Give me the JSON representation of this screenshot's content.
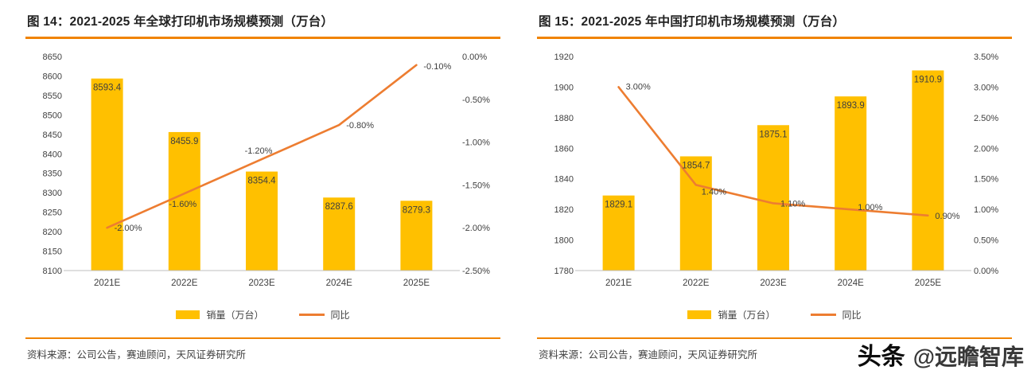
{
  "colors": {
    "bar": "#FFC000",
    "line": "#ED7D31",
    "accent_rule": "#F08300",
    "axis_text": "#404040"
  },
  "watermark": {
    "brand": "头条",
    "handle": "@远瞻智库"
  },
  "chart_data": [
    {
      "type": "bar+line",
      "title": "图 14：2021-2025 年全球打印机市场规模预测（万台）",
      "categories": [
        "2021E",
        "2022E",
        "2023E",
        "2024E",
        "2025E"
      ],
      "series": [
        {
          "name": "销量（万台）",
          "type": "bar",
          "axis": "left",
          "values": [
            8593.4,
            8455.9,
            8354.4,
            8287.6,
            8279.3
          ],
          "labels": [
            "8593.4",
            "8455.9",
            "8354.4",
            "8287.6",
            "8279.3"
          ]
        },
        {
          "name": "同比",
          "type": "line",
          "axis": "right",
          "values": [
            -2.0,
            -1.6,
            -1.2,
            -0.8,
            -0.1
          ],
          "labels": [
            "-2.00%",
            "-1.60%",
            "-1.20%",
            "-0.80%",
            "-0.10%"
          ]
        }
      ],
      "left_axis": {
        "min": 8100,
        "max": 8650,
        "tick_labels": [
          "8650",
          "8600",
          "8550",
          "8500",
          "8450",
          "8400",
          "8350",
          "8300",
          "8250",
          "8200",
          "8150",
          "8100"
        ]
      },
      "right_axis": {
        "min": -2.5,
        "max": 0,
        "tick_labels": [
          "0.00%",
          "-0.50%",
          "-1.00%",
          "-1.50%",
          "-2.00%",
          "-2.50%"
        ]
      },
      "legend_position": "bottom",
      "grid": "off",
      "source": "资料来源：公司公告，赛迪顾问，天风证券研究所"
    },
    {
      "type": "bar+line",
      "title": "图 15：2021-2025 年中国打印机市场规模预测（万台）",
      "categories": [
        "2021E",
        "2022E",
        "2023E",
        "2024E",
        "2025E"
      ],
      "series": [
        {
          "name": "销量（万台）",
          "type": "bar",
          "axis": "left",
          "values": [
            1829.1,
            1854.7,
            1875.1,
            1893.9,
            1910.9
          ],
          "labels": [
            "1829.1",
            "1854.7",
            "1875.1",
            "1893.9",
            "1910.9"
          ]
        },
        {
          "name": "同比",
          "type": "line",
          "axis": "right",
          "values": [
            3.0,
            1.4,
            1.1,
            1.0,
            0.9
          ],
          "labels": [
            "3.00%",
            "1.40%",
            "1.10%",
            "1.00%",
            "0.90%"
          ]
        }
      ],
      "left_axis": {
        "min": 1780,
        "max": 1920,
        "tick_labels": [
          "1920",
          "1900",
          "1880",
          "1860",
          "1840",
          "1820",
          "1800",
          "1780"
        ]
      },
      "right_axis": {
        "min": 0,
        "max": 3.5,
        "tick_labels": [
          "3.50%",
          "3.00%",
          "2.50%",
          "2.00%",
          "1.50%",
          "1.00%",
          "0.50%",
          "0.00%"
        ]
      },
      "legend_position": "bottom",
      "grid": "off",
      "source": "资料来源：公司公告，赛迪顾问，天风证券研究所"
    }
  ]
}
